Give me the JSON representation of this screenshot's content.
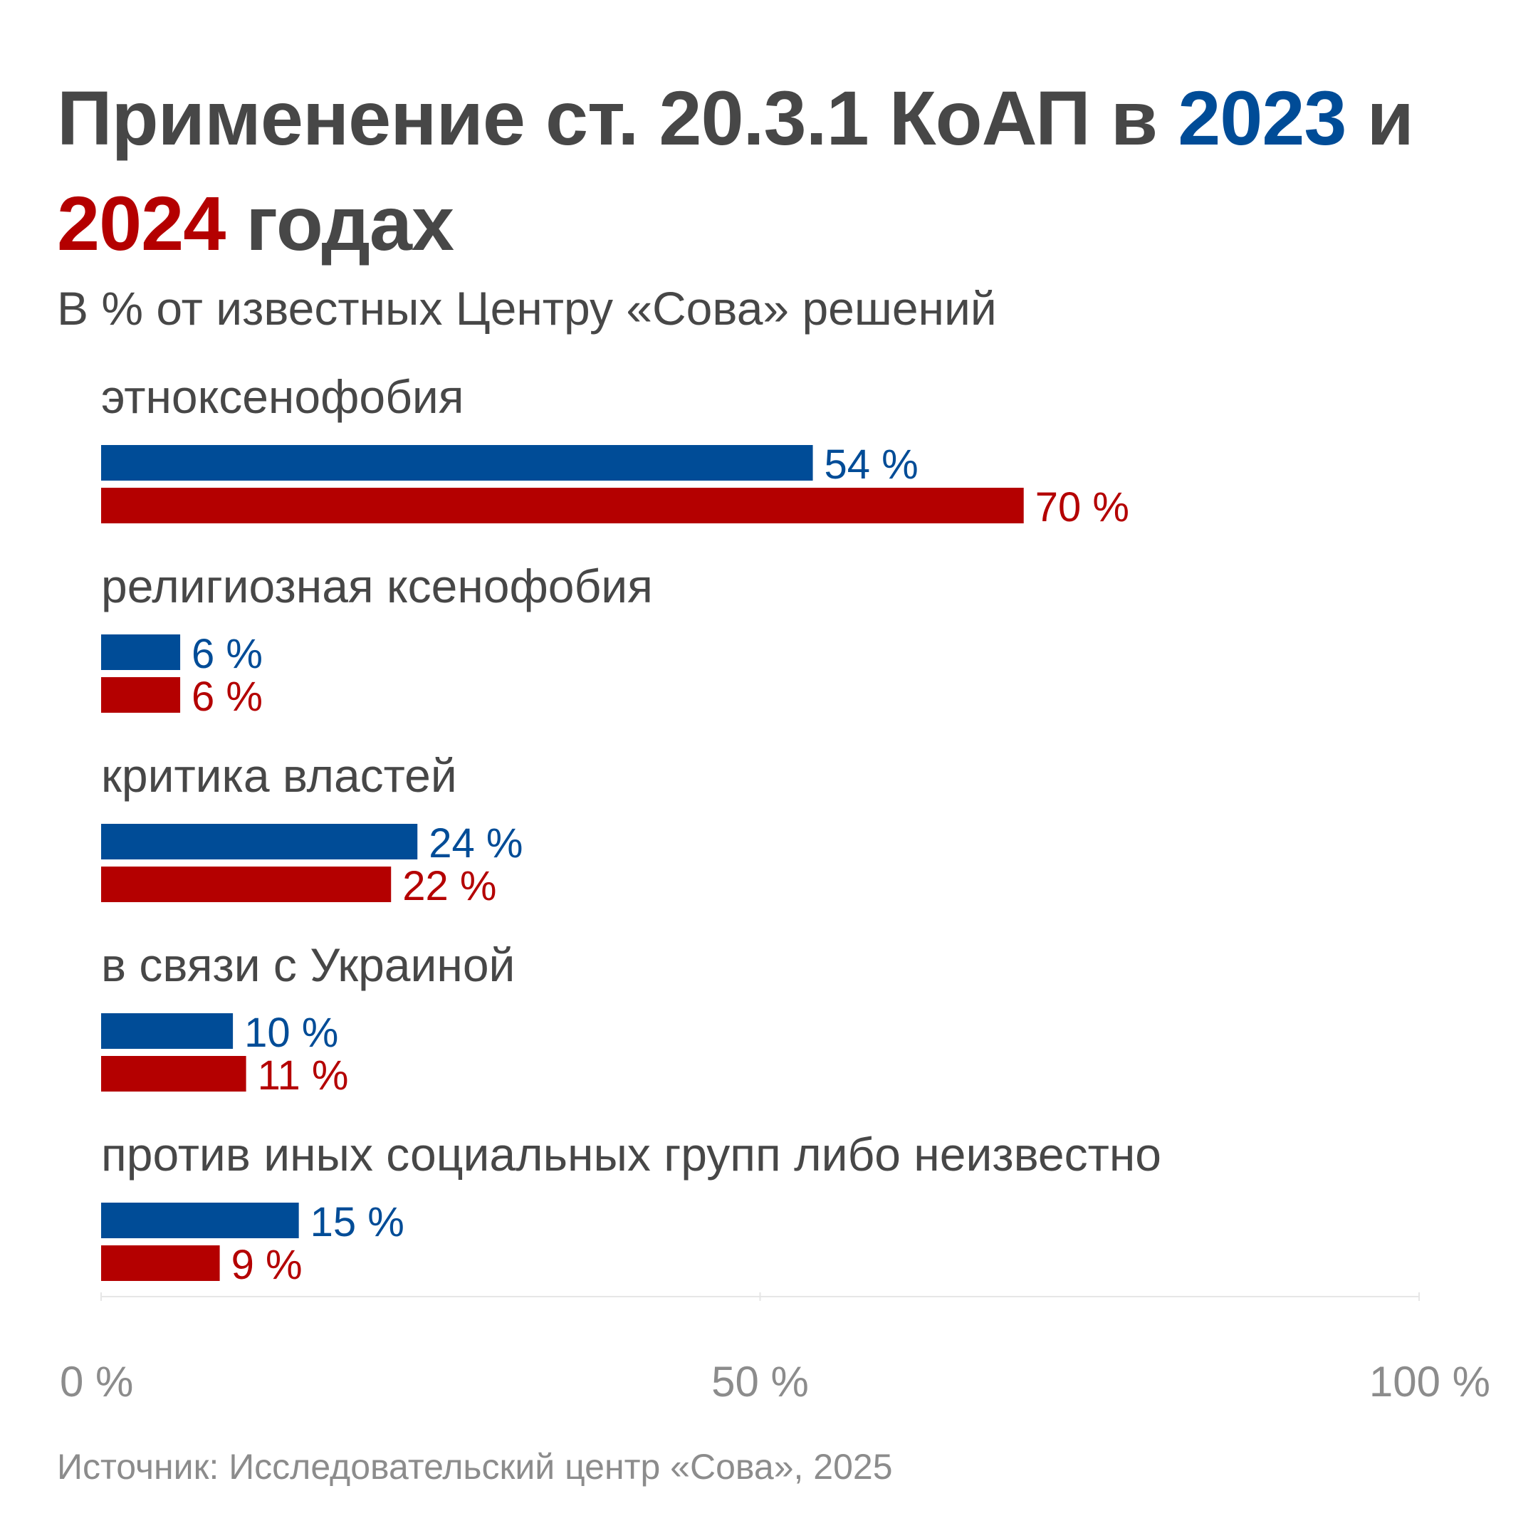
{
  "title": {
    "part1": "Применение ст. 20.3.1 КоАП в ",
    "year1": "2023",
    "part2": " и ",
    "year2": "2024",
    "part3": " годах"
  },
  "subtitle": "В % от известных Центру «Сова» решений",
  "source": "Источник: Исследовательский центр «Сова», 2025",
  "colors": {
    "series_2023": "#004c97",
    "series_2024": "#b40000",
    "text": "#474747",
    "axis": "#8c8c8c",
    "grid": "#e6e6e6"
  },
  "chart_data": {
    "type": "bar",
    "orientation": "horizontal",
    "categories": [
      "этноксенофобия",
      "религиозная ксенофобия",
      "критика властей",
      "в связи с Украиной",
      "против иных социальных групп либо неизвестно"
    ],
    "series": [
      {
        "name": "2023",
        "color": "#004c97",
        "values": [
          54,
          6,
          24,
          10,
          15
        ],
        "labels": [
          "54 %",
          "6 %",
          "24 %",
          "10 %",
          "15 %"
        ]
      },
      {
        "name": "2024",
        "color": "#b40000",
        "values": [
          70,
          6,
          22,
          11,
          9
        ],
        "labels": [
          "70 %",
          "6 %",
          "22 %",
          "11 %",
          "9 %"
        ]
      }
    ],
    "xlim": [
      0,
      100
    ],
    "xticks": [
      0,
      50,
      100
    ],
    "xtick_labels": [
      "0 %",
      "50 %",
      "100 %"
    ]
  }
}
